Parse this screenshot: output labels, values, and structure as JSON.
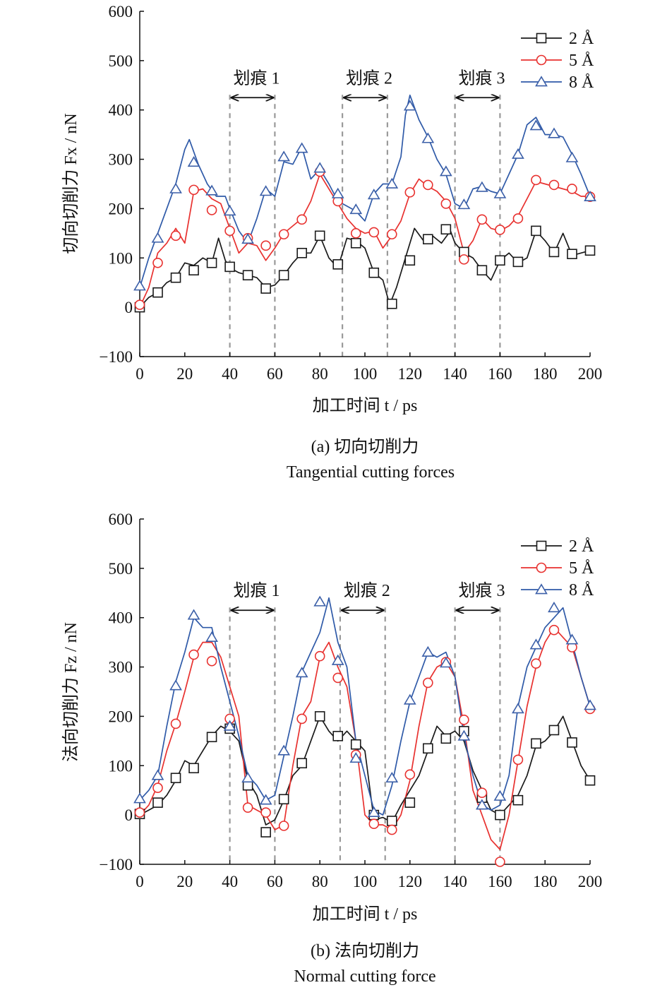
{
  "chart_data": [
    {
      "type": "line",
      "caption_cn": "(a) 切向切削力",
      "caption_en": "Tangential cutting forces",
      "xlabel": "加工时间 t / ps",
      "ylabel": "切向切削力 Fx / nN",
      "xlim": [
        0,
        200
      ],
      "ylim": [
        -100,
        600
      ],
      "xticks": [
        "0",
        "20",
        "40",
        "60",
        "80",
        "100",
        "120",
        "140",
        "160",
        "180",
        "200"
      ],
      "yticks": [
        "−100",
        "0",
        "100",
        "200",
        "300",
        "400",
        "500",
        "600"
      ],
      "legend": "top-right",
      "regions": [
        {
          "label": "划痕 1",
          "start": 40,
          "end": 60
        },
        {
          "label": "划痕 2",
          "start": 90,
          "end": 110
        },
        {
          "label": "划痕 3",
          "start": 140,
          "end": 160
        }
      ],
      "series": [
        {
          "name": "2 Å",
          "marker": "square",
          "color": "#1a1a1a",
          "marker_color": "#1a1a1a",
          "x": [
            0,
            4,
            8,
            12,
            16,
            20,
            24,
            28,
            32,
            35,
            38,
            40,
            44,
            48,
            52,
            56,
            60,
            64,
            68,
            72,
            76,
            80,
            84,
            88,
            92,
            96,
            100,
            104,
            108,
            111,
            114,
            118,
            122,
            126,
            130,
            134,
            138,
            140,
            144,
            148,
            152,
            156,
            160,
            164,
            168,
            172,
            176,
            180,
            184,
            188,
            192,
            196,
            200
          ],
          "y": [
            0,
            20,
            30,
            50,
            60,
            90,
            85,
            100,
            90,
            140,
            95,
            80,
            70,
            65,
            60,
            40,
            45,
            65,
            90,
            110,
            110,
            145,
            100,
            80,
            140,
            135,
            120,
            70,
            55,
            5,
            40,
            100,
            160,
            135,
            145,
            130,
            155,
            130,
            110,
            100,
            75,
            55,
            95,
            110,
            90,
            100,
            155,
            135,
            110,
            150,
            105,
            110,
            115
          ],
          "markers_x": [
            0,
            8,
            16,
            24,
            32,
            40,
            48,
            56,
            64,
            72,
            80,
            88,
            96,
            104,
            112,
            120,
            128,
            136,
            144,
            152,
            160,
            168,
            176,
            184,
            192,
            200
          ],
          "markers_y": [
            0,
            30,
            60,
            75,
            90,
            82,
            65,
            38,
            65,
            110,
            145,
            87,
            130,
            70,
            7,
            95,
            138,
            158,
            112,
            75,
            95,
            92,
            155,
            112,
            108,
            115
          ]
        },
        {
          "name": "5 Å",
          "marker": "circle",
          "color": "#e8312f",
          "marker_color": "#e8312f",
          "x": [
            0,
            4,
            8,
            12,
            16,
            20,
            24,
            28,
            32,
            36,
            40,
            44,
            48,
            52,
            56,
            60,
            64,
            68,
            72,
            76,
            80,
            84,
            88,
            92,
            96,
            100,
            104,
            108,
            112,
            116,
            120,
            124,
            128,
            132,
            136,
            140,
            144,
            148,
            152,
            156,
            160,
            164,
            168,
            172,
            176,
            180,
            184,
            188,
            192,
            196,
            200
          ],
          "y": [
            0,
            40,
            110,
            130,
            160,
            130,
            235,
            240,
            220,
            210,
            160,
            110,
            130,
            125,
            95,
            120,
            150,
            165,
            180,
            215,
            270,
            240,
            210,
            180,
            160,
            150,
            155,
            120,
            145,
            175,
            230,
            260,
            245,
            235,
            215,
            180,
            110,
            135,
            180,
            160,
            155,
            165,
            185,
            220,
            255,
            250,
            245,
            240,
            235,
            225,
            225
          ],
          "markers_x": [
            0,
            8,
            16,
            24,
            32,
            40,
            48,
            56,
            64,
            72,
            80,
            88,
            96,
            104,
            112,
            120,
            128,
            136,
            144,
            152,
            160,
            168,
            176,
            184,
            192,
            200
          ],
          "markers_y": [
            5,
            90,
            145,
            238,
            197,
            155,
            140,
            125,
            148,
            178,
            275,
            215,
            150,
            152,
            148,
            233,
            248,
            210,
            97,
            178,
            157,
            180,
            258,
            248,
            240,
            224
          ]
        },
        {
          "name": "8 Å",
          "marker": "triangle",
          "color": "#2f5aa8",
          "marker_color": "#3b5fa8",
          "x": [
            0,
            4,
            8,
            12,
            16,
            20,
            22,
            26,
            30,
            34,
            38,
            40,
            44,
            48,
            52,
            56,
            60,
            64,
            68,
            72,
            76,
            80,
            84,
            88,
            92,
            96,
            100,
            104,
            108,
            112,
            116,
            118,
            120,
            124,
            128,
            132,
            136,
            140,
            144,
            148,
            152,
            156,
            160,
            164,
            168,
            172,
            176,
            180,
            184,
            188,
            192,
            196,
            200
          ],
          "y": [
            40,
            100,
            150,
            200,
            250,
            320,
            340,
            290,
            250,
            225,
            225,
            200,
            155,
            130,
            180,
            240,
            225,
            295,
            290,
            325,
            260,
            280,
            250,
            215,
            205,
            195,
            175,
            230,
            250,
            250,
            305,
            390,
            430,
            380,
            345,
            300,
            270,
            210,
            200,
            240,
            245,
            235,
            230,
            270,
            310,
            370,
            385,
            350,
            350,
            345,
            310,
            270,
            225
          ],
          "markers_x": [
            0,
            8,
            16,
            24,
            32,
            40,
            48,
            56,
            64,
            72,
            80,
            88,
            96,
            104,
            112,
            120,
            128,
            136,
            144,
            152,
            160,
            168,
            176,
            184,
            192,
            200
          ],
          "markers_y": [
            43,
            140,
            240,
            294,
            236,
            195,
            138,
            235,
            305,
            322,
            282,
            230,
            198,
            228,
            250,
            408,
            342,
            275,
            208,
            243,
            230,
            310,
            368,
            352,
            303,
            224
          ]
        }
      ]
    },
    {
      "type": "line",
      "caption_cn": "(b) 法向切削力",
      "caption_en": "Normal cutting force",
      "xlabel": "加工时间 t / ps",
      "ylabel": "法向切削力 Fz / nN",
      "xlim": [
        0,
        200
      ],
      "ylim": [
        -100,
        600
      ],
      "xticks": [
        "0",
        "20",
        "40",
        "60",
        "80",
        "100",
        "120",
        "140",
        "160",
        "180",
        "200"
      ],
      "yticks": [
        "−100",
        "0",
        "100",
        "200",
        "300",
        "400",
        "500",
        "600"
      ],
      "legend": "top-right",
      "regions": [
        {
          "label": "划痕 1",
          "start": 40,
          "end": 60
        },
        {
          "label": "划痕 2",
          "start": 89,
          "end": 109
        },
        {
          "label": "划痕 3",
          "start": 140,
          "end": 160
        }
      ],
      "series": [
        {
          "name": "2 Å",
          "marker": "square",
          "color": "#1a1a1a",
          "marker_color": "#1a1a1a",
          "x": [
            0,
            4,
            8,
            12,
            16,
            20,
            24,
            28,
            32,
            36,
            40,
            44,
            48,
            52,
            56,
            60,
            64,
            68,
            72,
            76,
            80,
            84,
            88,
            92,
            96,
            100,
            104,
            108,
            112,
            116,
            120,
            124,
            128,
            132,
            136,
            140,
            144,
            148,
            152,
            156,
            160,
            164,
            168,
            172,
            176,
            180,
            184,
            188,
            192,
            196,
            200
          ],
          "y": [
            0,
            10,
            20,
            40,
            70,
            110,
            100,
            130,
            160,
            180,
            170,
            150,
            70,
            40,
            -20,
            -10,
            30,
            80,
            100,
            150,
            200,
            170,
            150,
            170,
            150,
            130,
            -10,
            -5,
            -15,
            20,
            50,
            80,
            130,
            180,
            160,
            170,
            150,
            90,
            50,
            10,
            0,
            20,
            40,
            80,
            140,
            150,
            170,
            200,
            150,
            100,
            70
          ],
          "markers_x": [
            0,
            8,
            16,
            24,
            32,
            40,
            48,
            56,
            64,
            72,
            80,
            88,
            96,
            104,
            112,
            120,
            128,
            136,
            144,
            152,
            160,
            168,
            176,
            184,
            192,
            200
          ],
          "markers_y": [
            2,
            25,
            75,
            95,
            158,
            175,
            60,
            -35,
            32,
            105,
            200,
            160,
            143,
            0,
            -12,
            25,
            135,
            155,
            170,
            35,
            0,
            30,
            145,
            172,
            147,
            70
          ]
        },
        {
          "name": "5 Å",
          "marker": "circle",
          "color": "#e8312f",
          "marker_color": "#e8312f",
          "x": [
            0,
            4,
            8,
            12,
            16,
            20,
            24,
            28,
            32,
            36,
            40,
            44,
            48,
            52,
            56,
            60,
            64,
            68,
            72,
            76,
            80,
            84,
            88,
            92,
            96,
            100,
            104,
            108,
            112,
            116,
            120,
            124,
            128,
            132,
            136,
            140,
            144,
            148,
            152,
            156,
            160,
            164,
            168,
            172,
            176,
            180,
            184,
            188,
            192,
            196,
            200
          ],
          "y": [
            0,
            20,
            60,
            130,
            185,
            250,
            320,
            350,
            350,
            320,
            260,
            200,
            20,
            10,
            0,
            -30,
            -20,
            100,
            200,
            230,
            320,
            350,
            300,
            260,
            150,
            0,
            -20,
            -20,
            -30,
            0,
            70,
            180,
            270,
            300,
            310,
            280,
            180,
            50,
            0,
            -50,
            -70,
            0,
            110,
            220,
            300,
            350,
            380,
            360,
            340,
            280,
            220
          ],
          "markers_x": [
            0,
            8,
            16,
            24,
            32,
            40,
            48,
            56,
            64,
            72,
            80,
            88,
            96,
            104,
            112,
            120,
            128,
            136,
            144,
            152,
            160,
            168,
            176,
            184,
            192,
            200
          ],
          "markers_y": [
            5,
            55,
            185,
            325,
            312,
            195,
            15,
            5,
            -22,
            195,
            322,
            278,
            122,
            -18,
            -30,
            82,
            268,
            310,
            193,
            45,
            -95,
            112,
            307,
            375,
            340,
            215
          ]
        },
        {
          "name": "8 Å",
          "marker": "triangle",
          "color": "#2f5aa8",
          "marker_color": "#3b5fa8",
          "x": [
            0,
            4,
            8,
            12,
            16,
            20,
            24,
            28,
            32,
            36,
            40,
            44,
            48,
            52,
            56,
            60,
            64,
            68,
            72,
            76,
            80,
            84,
            88,
            92,
            96,
            100,
            104,
            108,
            112,
            116,
            120,
            124,
            128,
            132,
            136,
            140,
            144,
            148,
            152,
            156,
            160,
            164,
            168,
            172,
            176,
            180,
            184,
            188,
            192,
            196,
            200
          ],
          "y": [
            30,
            50,
            80,
            180,
            270,
            330,
            400,
            380,
            380,
            300,
            230,
            160,
            80,
            60,
            30,
            40,
            120,
            200,
            290,
            330,
            370,
            440,
            350,
            300,
            150,
            80,
            10,
            0,
            60,
            150,
            230,
            280,
            330,
            320,
            330,
            280,
            160,
            80,
            20,
            10,
            20,
            80,
            220,
            300,
            340,
            380,
            400,
            420,
            350,
            280,
            220
          ],
          "markers_x": [
            0,
            8,
            16,
            24,
            32,
            40,
            48,
            56,
            64,
            72,
            80,
            88,
            96,
            104,
            112,
            120,
            128,
            136,
            144,
            152,
            160,
            168,
            176,
            184,
            192,
            200
          ],
          "markers_y": [
            33,
            80,
            262,
            405,
            360,
            180,
            75,
            30,
            130,
            288,
            432,
            313,
            115,
            5,
            75,
            233,
            330,
            308,
            160,
            20,
            38,
            215,
            345,
            420,
            355,
            222
          ]
        }
      ]
    }
  ]
}
